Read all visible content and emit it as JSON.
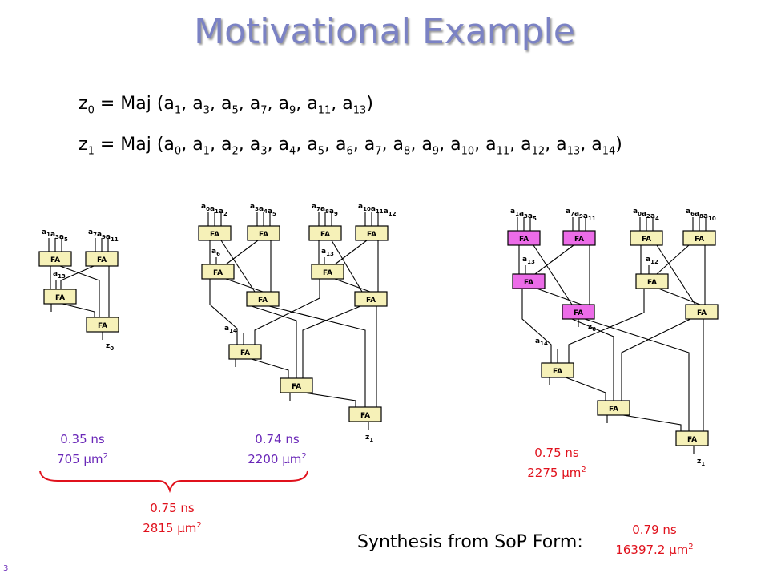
{
  "title": "Motivational Example",
  "eq0": {
    "lhs": "z",
    "lhs_sub": "0",
    "rhs_prefix": " = Maj (",
    "args": [
      [
        "a",
        "1"
      ],
      [
        "a",
        "3"
      ],
      [
        "a",
        "5"
      ],
      [
        "a",
        "7"
      ],
      [
        "a",
        "9"
      ],
      [
        "a",
        "11"
      ],
      [
        "a",
        "13"
      ]
    ],
    "rhs_suffix": ")"
  },
  "eq1": {
    "lhs": "z",
    "lhs_sub": "1",
    "rhs_prefix": " = Maj (",
    "args": [
      [
        "a",
        "0"
      ],
      [
        "a",
        "1"
      ],
      [
        "a",
        "2"
      ],
      [
        "a",
        "3"
      ],
      [
        "a",
        "4"
      ],
      [
        "a",
        "5"
      ],
      [
        "a",
        "6"
      ],
      [
        "a",
        "7"
      ],
      [
        "a",
        "8"
      ],
      [
        "a",
        "9"
      ],
      [
        "a",
        "10"
      ],
      [
        "a",
        "11"
      ],
      [
        "a",
        "12"
      ],
      [
        "a",
        "13"
      ],
      [
        "a",
        "14"
      ]
    ],
    "rhs_suffix": ")"
  },
  "gate_label": "FA",
  "diagram1": {
    "inputs": [
      "a1a3a5",
      "a7a9a11",
      "a13"
    ],
    "output": "z0"
  },
  "diagram2": {
    "inputs": [
      "a0a1a2",
      "a3a4a5",
      "a7a8a9",
      "a10a11a12",
      "a6",
      "a13",
      "a14"
    ],
    "output": "z1"
  },
  "diagram3": {
    "inputs": [
      "a1a3a5",
      "a7a9a11",
      "a0a2a4",
      "a6a8a10",
      "a13",
      "a12",
      "a14"
    ],
    "outputs": [
      "z0",
      "z1"
    ]
  },
  "metrics": {
    "m1": {
      "delay": "0.35 ns",
      "area": "705 μm",
      "unit_exp": "2"
    },
    "m2": {
      "delay": "0.74 ns",
      "area": "2200 μm",
      "unit_exp": "2"
    },
    "m3": {
      "delay": "0.75 ns",
      "area": "2815 μm",
      "unit_exp": "2"
    },
    "m4": {
      "delay": "0.75 ns",
      "area": "2275 μm",
      "unit_exp": "2"
    },
    "m5": {
      "delay": "0.79 ns",
      "area": "16397.2 μm",
      "unit_exp": "2"
    }
  },
  "synthesis_label": "Synthesis from SoP Form:",
  "page_number": "3",
  "colors": {
    "title": "#7b82c4",
    "metric_purple": "#6a28b8",
    "metric_red": "#e0111c",
    "fa_yellow": "#f6f1b8",
    "fa_pink": "#ec6ce8"
  }
}
